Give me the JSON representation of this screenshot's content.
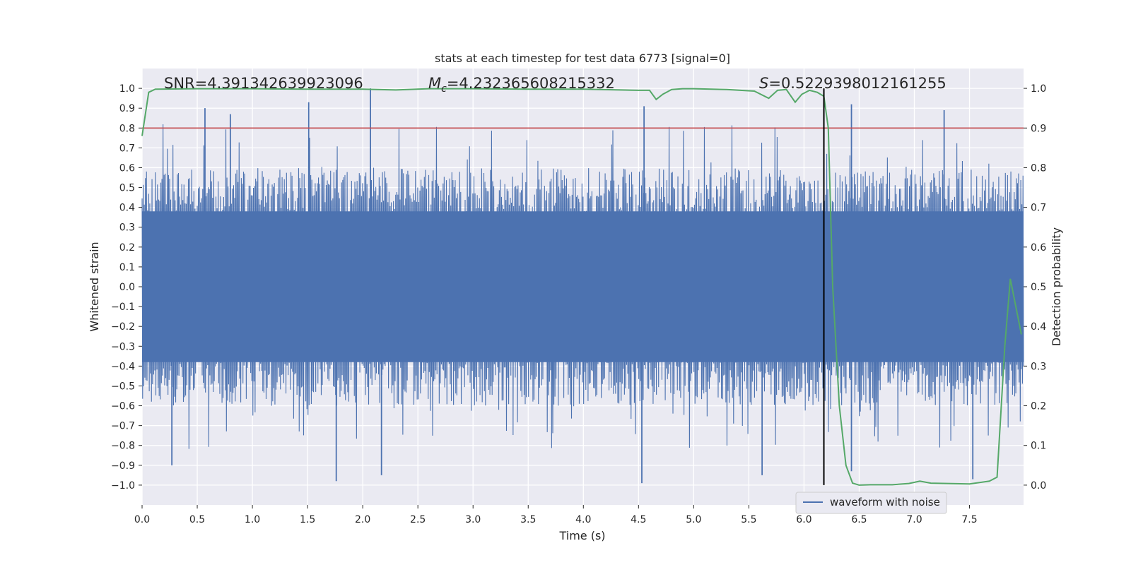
{
  "chart_data": {
    "type": "line",
    "title": "stats at each timestep for test data 6773 [signal=0]",
    "xlabel": "Time (s)",
    "ylabel": "Whitened strain",
    "y2label": "Detection probability",
    "xlim": [
      0.0,
      7.99
    ],
    "ylim": [
      -1.1,
      1.1
    ],
    "y2lim": [
      -0.05,
      1.05
    ],
    "grid": true,
    "x_ticks": [
      "0.0",
      "0.5",
      "1.0",
      "1.5",
      "2.0",
      "2.5",
      "3.0",
      "3.5",
      "4.0",
      "4.5",
      "5.0",
      "5.5",
      "6.0",
      "6.5",
      "7.0",
      "7.5"
    ],
    "y_ticks": [
      "1.0",
      "0.9",
      "0.8",
      "0.7",
      "0.6",
      "0.5",
      "0.4",
      "0.3",
      "0.2",
      "0.1",
      "0.0",
      "−0.1",
      "−0.2",
      "−0.3",
      "−0.4",
      "−0.5",
      "−0.6",
      "−0.7",
      "−0.8",
      "−0.9",
      "−1.0"
    ],
    "y2_ticks": [
      "1.0",
      "0.9",
      "0.8",
      "0.7",
      "0.6",
      "0.5",
      "0.4",
      "0.3",
      "0.2",
      "0.1",
      "0.0"
    ],
    "annotations": {
      "snr": "SNR=4.391342639923096",
      "mc_symbol": "M",
      "mc_sub": "c",
      "mc_value": "=4.232365608215332",
      "s_symbol": "S",
      "s_value": "=0.5229398012161255"
    },
    "threshold": {
      "y2": 0.9,
      "color": "#c44e52"
    },
    "marker_time": 6.18,
    "waveform": {
      "name": "waveform with noise",
      "color": "#4c72b0",
      "samples": 1600,
      "core_envelope": [
        -0.38,
        0.38
      ],
      "peaks": [
        {
          "t": 0.57,
          "v": 0.9
        },
        {
          "t": 0.8,
          "v": 0.87
        },
        {
          "t": 1.51,
          "v": 0.93
        },
        {
          "t": 2.07,
          "v": 1.0
        },
        {
          "t": 4.55,
          "v": 0.91
        },
        {
          "t": 6.43,
          "v": 0.92
        },
        {
          "t": 7.27,
          "v": 0.89
        },
        {
          "t": 1.76,
          "v": -0.98
        },
        {
          "t": 4.53,
          "v": -0.99
        },
        {
          "t": 0.27,
          "v": -0.9
        },
        {
          "t": 2.17,
          "v": -0.95
        },
        {
          "t": 6.43,
          "v": -0.93
        },
        {
          "t": 7.53,
          "v": -0.97
        },
        {
          "t": 5.62,
          "v": -0.95
        }
      ]
    },
    "probability": {
      "name": "detection probability",
      "color": "#55a868",
      "t": [
        0.0,
        0.06,
        0.12,
        0.5,
        1.0,
        1.5,
        2.0,
        2.3,
        2.6,
        3.0,
        3.5,
        4.0,
        4.5,
        4.6,
        4.66,
        4.72,
        4.8,
        4.9,
        5.0,
        5.3,
        5.55,
        5.68,
        5.76,
        5.84,
        5.92,
        5.98,
        6.05,
        6.12,
        6.18,
        6.22,
        6.26,
        6.32,
        6.38,
        6.44,
        6.5,
        6.6,
        6.8,
        6.95,
        7.05,
        7.15,
        7.3,
        7.5,
        7.68,
        7.75,
        7.82,
        7.87,
        7.92,
        7.97
      ],
      "v": [
        0.88,
        0.99,
        0.998,
        0.999,
        0.999,
        0.998,
        0.998,
        0.996,
        0.999,
        0.999,
        0.998,
        0.998,
        0.995,
        0.995,
        0.972,
        0.985,
        0.997,
        0.999,
        0.999,
        0.997,
        0.993,
        0.975,
        0.995,
        0.997,
        0.965,
        0.985,
        0.995,
        0.99,
        0.98,
        0.9,
        0.5,
        0.2,
        0.05,
        0.005,
        0.0,
        0.001,
        0.001,
        0.004,
        0.01,
        0.005,
        0.004,
        0.003,
        0.01,
        0.02,
        0.35,
        0.52,
        0.45,
        0.38
      ]
    }
  }
}
